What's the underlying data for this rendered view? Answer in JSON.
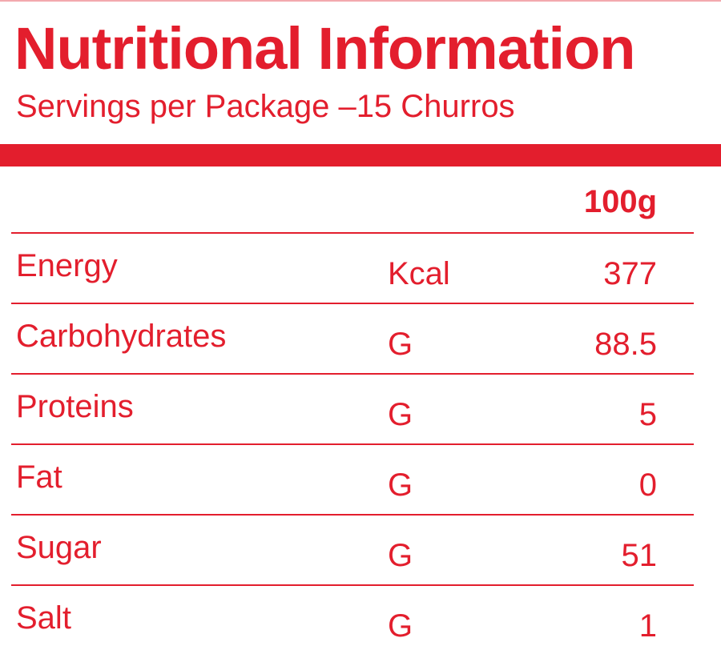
{
  "header": {
    "title": "Nutritional Information",
    "subtitle": "Servings per Package –15 Churros"
  },
  "table": {
    "column_header": "100g",
    "rows": [
      {
        "name": "Energy",
        "unit": "Kcal",
        "value": "377"
      },
      {
        "name": "Carbohydrates",
        "unit": "G",
        "value": "88.5"
      },
      {
        "name": "Proteins",
        "unit": "G",
        "value": "5"
      },
      {
        "name": "Fat",
        "unit": "G",
        "value": "0"
      },
      {
        "name": "Sugar",
        "unit": "G",
        "value": "51"
      },
      {
        "name": "Salt",
        "unit": "G",
        "value": "1"
      }
    ]
  },
  "colors": {
    "accent": "#e31e2d",
    "background": "#ffffff"
  }
}
